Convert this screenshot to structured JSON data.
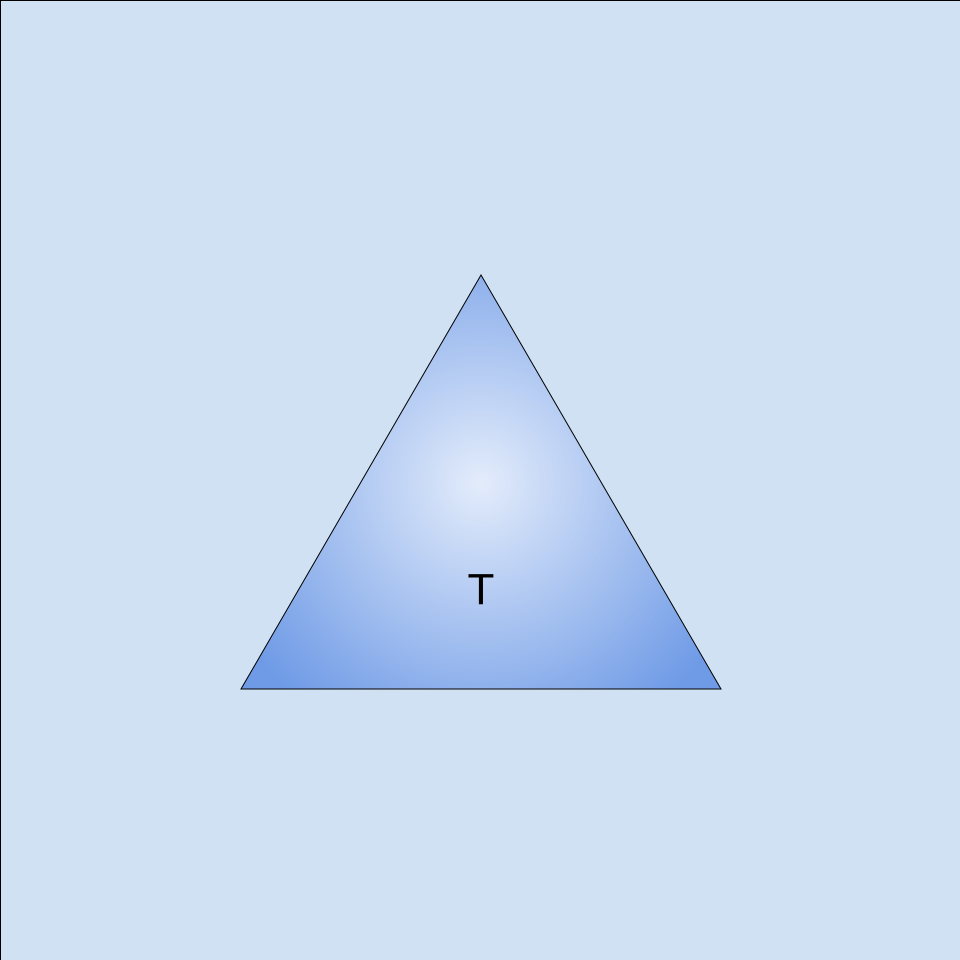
{
  "diagram": {
    "shape_type": "triangle",
    "label": "T",
    "colors": {
      "background": "#cfe1f2",
      "border": "#000000",
      "shape_gradient_center": "#e3ecfb",
      "shape_gradient_edge": "#6e9ae6",
      "shape_outline": "#000000",
      "label_text": "#000000"
    }
  }
}
